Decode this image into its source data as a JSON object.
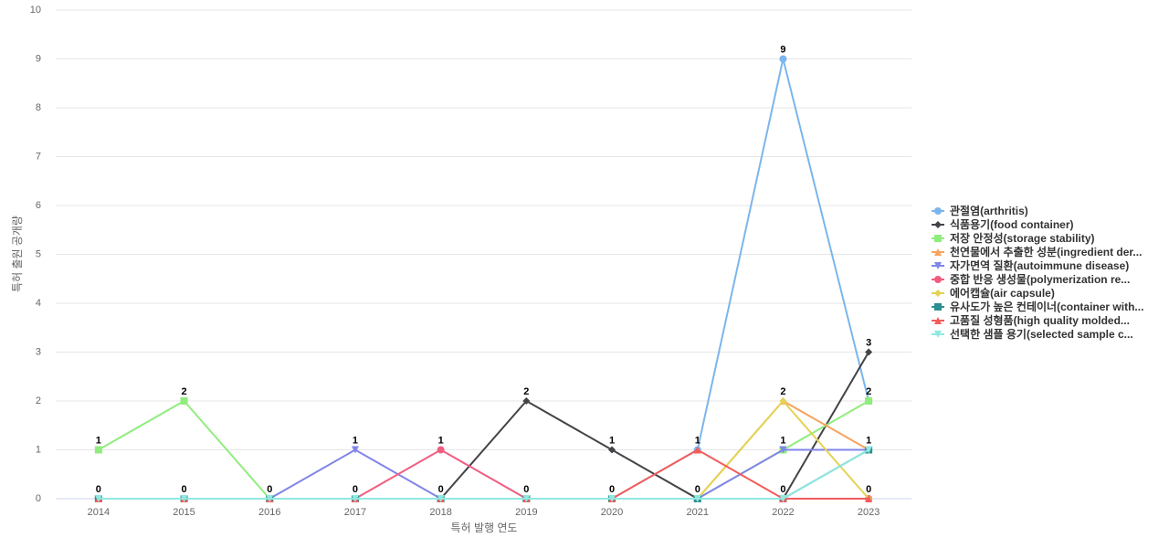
{
  "chart_data": {
    "type": "line",
    "x_label": "특허 발행 연도",
    "y_label": "특허 출원 공개량",
    "categories": [
      "2014",
      "2015",
      "2016",
      "2017",
      "2018",
      "2019",
      "2020",
      "2021",
      "2022",
      "2023"
    ],
    "ylim": [
      0,
      10
    ],
    "yticks": [
      0,
      1,
      2,
      3,
      4,
      5,
      6,
      7,
      8,
      9,
      10
    ],
    "grid": true,
    "legend": "right",
    "series": [
      {
        "name": "관절염(arthritis)",
        "color": "#7cb5ec",
        "marker": "circle",
        "values": [
          0,
          0,
          0,
          0,
          0,
          0,
          0,
          1,
          9,
          2
        ]
      },
      {
        "name": "식품용기(food container)",
        "color": "#434348",
        "marker": "diamond",
        "values": [
          0,
          0,
          0,
          0,
          0,
          2,
          1,
          0,
          0,
          3
        ]
      },
      {
        "name": "저장 안정성(storage stability)",
        "color": "#90ed7d",
        "marker": "square",
        "values": [
          1,
          2,
          0,
          0,
          0,
          0,
          0,
          0,
          1,
          2
        ]
      },
      {
        "name": "천연물에서 추출한 성분(ingredient der...",
        "color": "#f7a35c",
        "marker": "triangle",
        "values": [
          0,
          0,
          0,
          0,
          0,
          0,
          0,
          0,
          2,
          1
        ]
      },
      {
        "name": "자가면역 질환(autoimmune disease)",
        "color": "#8085e9",
        "marker": "triangle-down",
        "values": [
          0,
          0,
          0,
          1,
          0,
          0,
          0,
          0,
          1,
          1
        ]
      },
      {
        "name": "중합 반응 생성물(polymerization re...",
        "color": "#f15c80",
        "marker": "circle",
        "values": [
          0,
          0,
          0,
          0,
          1,
          0,
          0,
          0,
          0,
          0
        ]
      },
      {
        "name": "에어캡슐(air capsule)",
        "color": "#e4d354",
        "marker": "diamond",
        "values": [
          0,
          0,
          0,
          0,
          0,
          0,
          0,
          0,
          2,
          0
        ]
      },
      {
        "name": "유사도가 높은 컨테이너(container with...",
        "color": "#2b908f",
        "marker": "square",
        "values": [
          0,
          0,
          0,
          0,
          0,
          0,
          0,
          0,
          0,
          1
        ]
      },
      {
        "name": "고품질 성형품(high quality molded...",
        "color": "#f45b5b",
        "marker": "triangle",
        "values": [
          0,
          0,
          0,
          0,
          0,
          0,
          0,
          1,
          0,
          0
        ]
      },
      {
        "name": "선택한 샘플 용기(selected sample c...",
        "color": "#91e8e1",
        "marker": "triangle-down",
        "values": [
          0,
          0,
          0,
          0,
          0,
          0,
          0,
          0,
          0,
          1
        ]
      }
    ]
  }
}
